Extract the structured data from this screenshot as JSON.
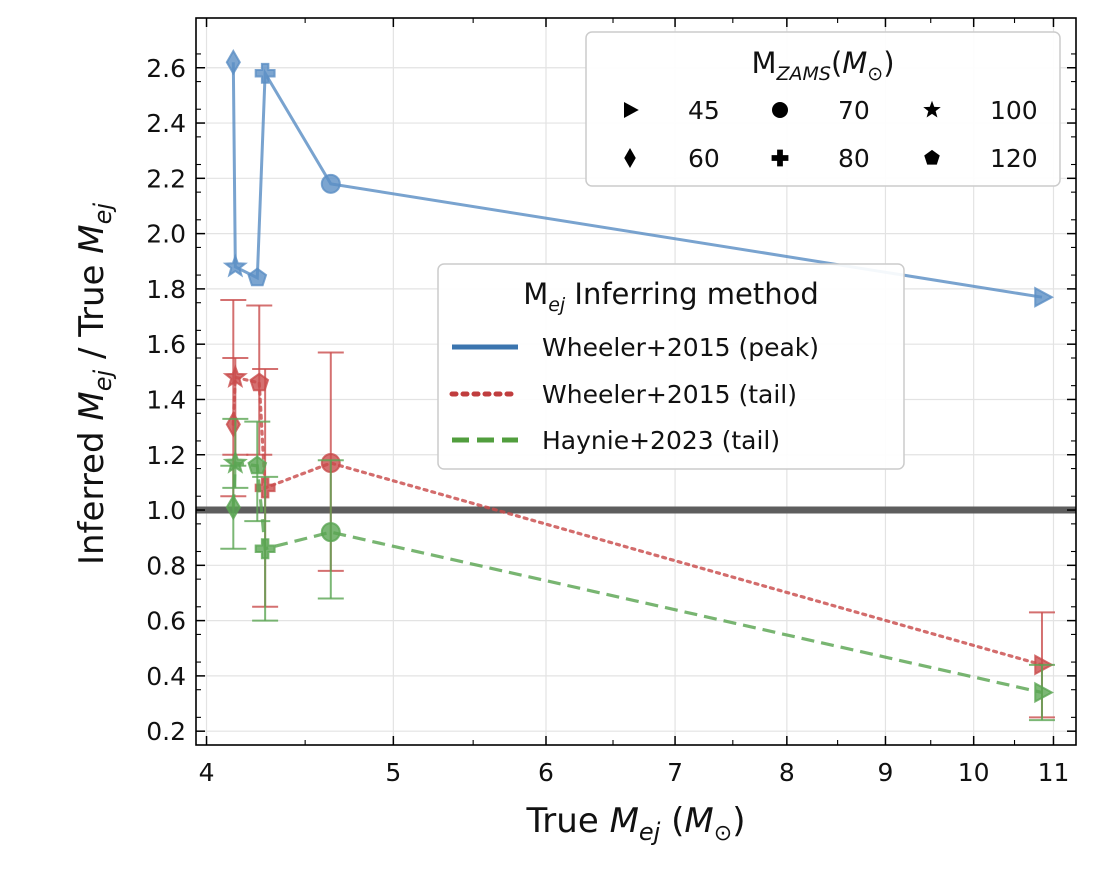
{
  "chart_data": {
    "type": "scatter",
    "x_scale": "log",
    "xlim": [
      3.95,
      11.3
    ],
    "ylim": [
      0.15,
      2.78
    ],
    "xticks": [
      4,
      5,
      6,
      7,
      8,
      9,
      10,
      11
    ],
    "xtick_labels": [
      "4",
      "5",
      "6",
      "7",
      "8",
      "9",
      "10",
      "11"
    ],
    "yticks": [
      0.2,
      0.4,
      0.6,
      0.8,
      1.0,
      1.2,
      1.4,
      1.6,
      1.8,
      2.0,
      2.2,
      2.4,
      2.6
    ],
    "ytick_labels": [
      "0.2",
      "0.4",
      "0.6",
      "0.8",
      "1.0",
      "1.2",
      "1.4",
      "1.6",
      "1.8",
      "2.0",
      "2.2",
      "2.4",
      "2.6"
    ],
    "xlabel": {
      "pre": "True ",
      "var": "M",
      "sub": "ej",
      "post": " (",
      "unit": "M",
      "unit_sub": "⊙",
      "close": ")"
    },
    "ylabel": {
      "pre": "Inferred ",
      "var": "M",
      "sub": "ej",
      "mid": " / True ",
      "var2": "M",
      "sub2": "ej"
    },
    "grid": true,
    "reference_line": {
      "y": 1.0,
      "color": "#555555"
    },
    "markers_legend": {
      "title": {
        "pre": "M",
        "sub": "ZAMS",
        "open": "(",
        "unit": "M",
        "unit_sub": "⊙",
        "close": ")"
      },
      "placement": "top-right",
      "entries": [
        {
          "marker": "triangle-right",
          "label": "45"
        },
        {
          "marker": "circle",
          "label": "70"
        },
        {
          "marker": "star",
          "label": "100"
        },
        {
          "marker": "diamond",
          "label": "60"
        },
        {
          "marker": "plus",
          "label": "80"
        },
        {
          "marker": "pentagon",
          "label": "120"
        }
      ]
    },
    "methods_legend": {
      "title": {
        "pre": "M",
        "sub": "ej",
        "post": " Inferring method"
      },
      "placement": "center-right",
      "entries": [
        {
          "style": "solid",
          "color": "#3b75af",
          "label": "Wheeler+2015 (peak)"
        },
        {
          "style": "dotted",
          "color": "#c03d3e",
          "label": "Wheeler+2015 (tail)"
        },
        {
          "style": "dashed",
          "color": "#519e3e",
          "label": "Haynie+2023 (tail)"
        }
      ]
    },
    "series": [
      {
        "name": "Wheeler+2015 (peak)",
        "color": "#5b8fc4",
        "line": "solid",
        "points": [
          {
            "mzams": 60,
            "marker": "diamond",
            "x": 4.13,
            "y": 2.62
          },
          {
            "mzams": 100,
            "marker": "star",
            "x": 4.14,
            "y": 1.88
          },
          {
            "mzams": 120,
            "marker": "pentagon",
            "x": 4.25,
            "y": 1.84
          },
          {
            "mzams": 80,
            "marker": "plus",
            "x": 4.29,
            "y": 2.58
          },
          {
            "mzams": 70,
            "marker": "circle",
            "x": 4.64,
            "y": 2.18
          },
          {
            "mzams": 45,
            "marker": "triangle-right",
            "x": 10.85,
            "y": 1.77
          }
        ]
      },
      {
        "name": "Wheeler+2015 (tail)",
        "color": "#c94c4c",
        "line": "dotted",
        "points": [
          {
            "mzams": 60,
            "marker": "diamond",
            "x": 4.13,
            "y": 1.31,
            "err": [
              0.26,
              0.45
            ]
          },
          {
            "mzams": 100,
            "marker": "star",
            "x": 4.14,
            "y": 1.48,
            "err": [
              0.28,
              0.07
            ]
          },
          {
            "mzams": 120,
            "marker": "pentagon",
            "x": 4.26,
            "y": 1.46,
            "err": [
              0.26,
              0.28
            ]
          },
          {
            "mzams": 80,
            "marker": "plus",
            "x": 4.29,
            "y": 1.08,
            "err": [
              0.43,
              0.43
            ]
          },
          {
            "mzams": 70,
            "marker": "circle",
            "x": 4.64,
            "y": 1.17,
            "err": [
              0.39,
              0.4
            ]
          },
          {
            "mzams": 45,
            "marker": "triangle-right",
            "x": 10.85,
            "y": 0.44,
            "err": [
              0.19,
              0.19
            ]
          }
        ]
      },
      {
        "name": "Haynie+2023 (tail)",
        "color": "#5aa552",
        "line": "dashed",
        "points": [
          {
            "mzams": 60,
            "marker": "diamond",
            "x": 4.13,
            "y": 1.01,
            "err": [
              0.15,
              0.15
            ]
          },
          {
            "mzams": 100,
            "marker": "star",
            "x": 4.14,
            "y": 1.17,
            "err": [
              0.09,
              0.16
            ]
          },
          {
            "mzams": 120,
            "marker": "pentagon",
            "x": 4.25,
            "y": 1.16,
            "err": [
              0.2,
              0.16
            ]
          },
          {
            "mzams": 80,
            "marker": "plus",
            "x": 4.29,
            "y": 0.86,
            "err": [
              0.26,
              0.26
            ]
          },
          {
            "mzams": 70,
            "marker": "circle",
            "x": 4.64,
            "y": 0.92,
            "err": [
              0.24,
              0.26
            ]
          },
          {
            "mzams": 45,
            "marker": "triangle-right",
            "x": 10.85,
            "y": 0.34,
            "err": [
              0.1,
              0.1
            ]
          }
        ]
      }
    ]
  }
}
